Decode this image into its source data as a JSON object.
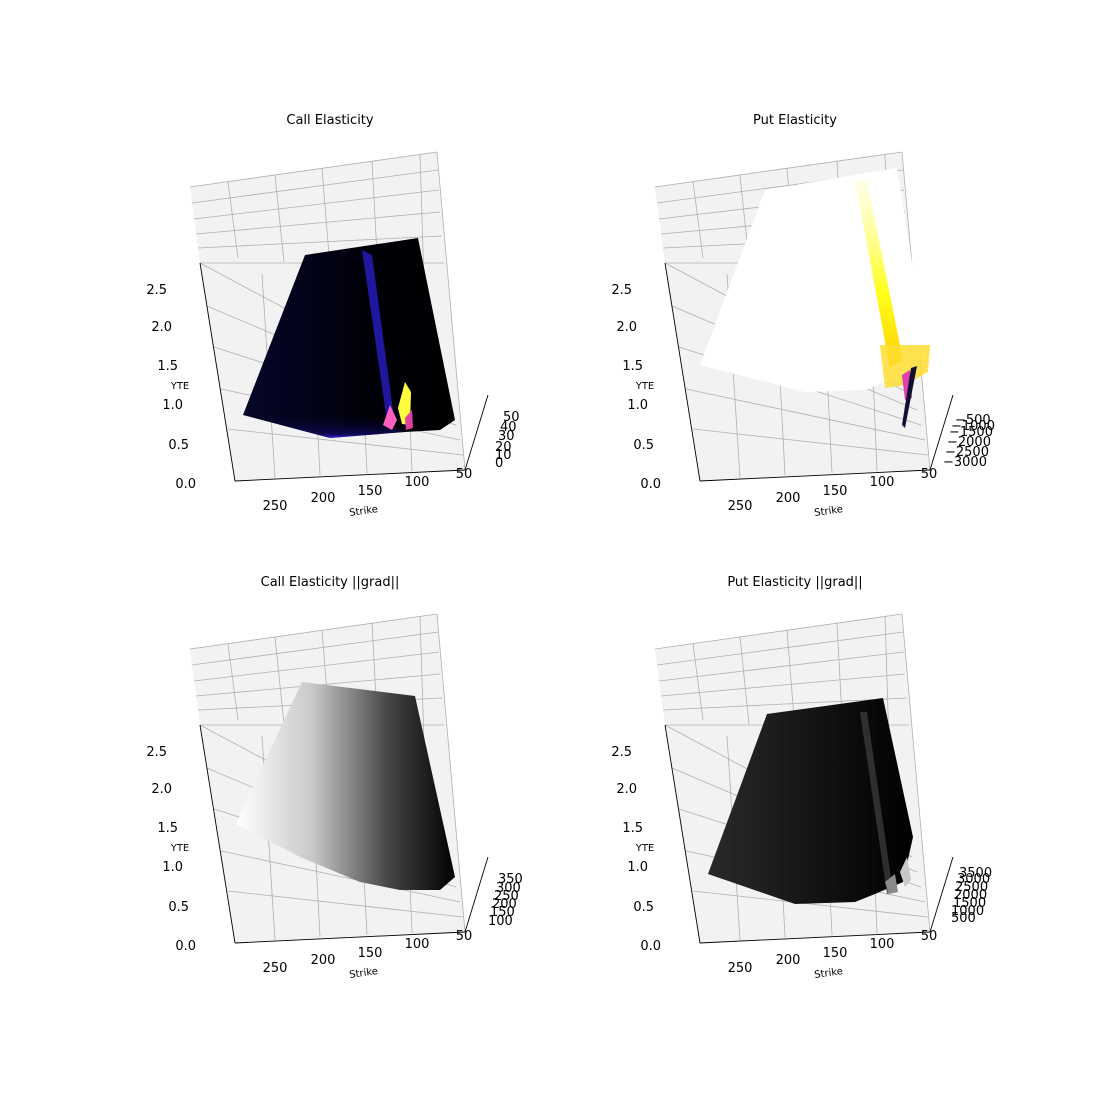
{
  "chart_data": [
    {
      "type": "surface",
      "title": "Call Elasticity",
      "xlabel": "Strike",
      "ylabel": "YTE",
      "zlabel": "",
      "x_ticks": [
        "250",
        "200",
        "150",
        "100",
        "50"
      ],
      "y_ticks": [
        "0.0",
        "0.5",
        "1.0",
        "1.5",
        "2.0",
        "2.5"
      ],
      "z_ticks": [
        "0",
        "10",
        "20",
        "30",
        "40",
        "50"
      ],
      "zlim": [
        0,
        50
      ],
      "colormap": "gnuplot2",
      "grid": true
    },
    {
      "type": "surface",
      "title": "Put Elasticity",
      "xlabel": "Strike",
      "ylabel": "YTE",
      "zlabel": "",
      "x_ticks": [
        "250",
        "200",
        "150",
        "100",
        "50"
      ],
      "y_ticks": [
        "0.0",
        "0.5",
        "1.0",
        "1.5",
        "2.0",
        "2.5"
      ],
      "z_ticks": [
        "−3000",
        "−2500",
        "−2000",
        "−1500",
        "−1000",
        "−500"
      ],
      "zlim": [
        -3000,
        -500
      ],
      "colormap": "gnuplot2",
      "grid": true
    },
    {
      "type": "surface",
      "title": "Call Elasticity ||grad||",
      "xlabel": "Strike",
      "ylabel": "YTE",
      "zlabel": "",
      "x_ticks": [
        "250",
        "200",
        "150",
        "100",
        "50"
      ],
      "y_ticks": [
        "0.0",
        "0.5",
        "1.0",
        "1.5",
        "2.0",
        "2.5"
      ],
      "z_ticks": [
        "100",
        "150",
        "200",
        "250",
        "300",
        "350"
      ],
      "zlim": [
        100,
        350
      ],
      "colormap": "gray",
      "grid": true
    },
    {
      "type": "surface",
      "title": "Put Elasticity ||grad||",
      "xlabel": "Strike",
      "ylabel": "YTE",
      "zlabel": "",
      "x_ticks": [
        "250",
        "200",
        "150",
        "100",
        "50"
      ],
      "y_ticks": [
        "0.0",
        "0.5",
        "1.0",
        "1.5",
        "2.0",
        "2.5"
      ],
      "z_ticks": [
        "500",
        "1000",
        "1500",
        "2000",
        "2500",
        "3000",
        "3500"
      ],
      "zlim": [
        500,
        3500
      ],
      "colormap": "gray",
      "grid": true
    }
  ],
  "colors": {
    "background": "#ffffff",
    "pane": "#f2f2f2",
    "grid": "#b0b0b0"
  }
}
